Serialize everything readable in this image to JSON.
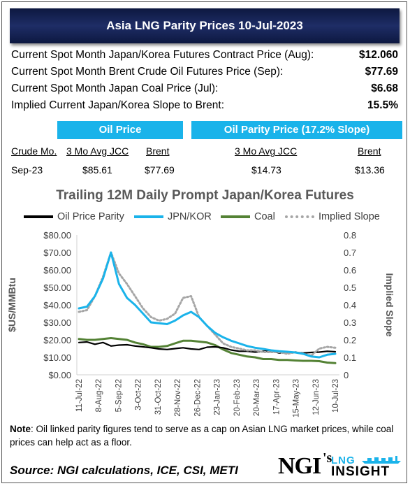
{
  "header": {
    "title": "Asia LNG Parity Prices 10-Jul-2023"
  },
  "metrics": [
    {
      "label": "Current Spot Month Japan/Korea Futures Contract Price (Aug):",
      "value": "$12.060"
    },
    {
      "label": "Current Spot Month Brent Crude Oil Futures Price (Sep):",
      "value": "$77.69"
    },
    {
      "label": "Current Spot Month Japan Coal Price (Jul):",
      "value": "$6.68"
    },
    {
      "label": "Implied Current Japan/Korea Slope to Brent:",
      "value": "15.5%"
    }
  ],
  "table": {
    "oil_price_header": "Oil Price",
    "parity_header": "Oil Parity Price (17.2% Slope)",
    "columns": [
      "Crude Mo.",
      "3 Mo Avg JCC",
      "Brent",
      "3 Mo Avg JCC",
      "Brent"
    ],
    "row": [
      "Sep-23",
      "$85.61",
      "$77.69",
      "$14.73",
      "$13.36"
    ]
  },
  "colors": {
    "parity": "#000000",
    "jpn_kor": "#1ab3ea",
    "coal": "#548235",
    "slope": "#a6a6a6",
    "header_blue": "#1ab3ea",
    "title_navy": "#16224f"
  },
  "chart_data": {
    "type": "line",
    "title": "Trailing 12M Daily Prompt Japan/Korea Futures",
    "ylabel": "$US/MMBtu",
    "y2label": "Implied Slope",
    "ylim": [
      0,
      80
    ],
    "y2lim": [
      0,
      0.8
    ],
    "y_ticks": [
      "$0.00",
      "$10.00",
      "$20.00",
      "$30.00",
      "$40.00",
      "$50.00",
      "$60.00",
      "$70.00",
      "$80.00"
    ],
    "y2_ticks": [
      "0",
      "0.1",
      "0.2",
      "0.3",
      "0.4",
      "0.5",
      "0.6",
      "0.7",
      "0.8"
    ],
    "x_ticks": [
      "11-Jul-22",
      "8-Aug-22",
      "5-Sep-22",
      "3-Oct-22",
      "31-Oct-22",
      "28-Nov-22",
      "26-Dec-22",
      "23-Jan-23",
      "20-Feb-23",
      "20-Mar-23",
      "17-Apr-23",
      "15-May-23",
      "12-Jun-23",
      "10-Jul-23"
    ],
    "legend_placement": "top",
    "grid": false,
    "series": [
      {
        "name": "Oil Price Parity",
        "axis": "left",
        "style": "solid",
        "values": [
          18.5,
          18.8,
          17.5,
          18.5,
          16.5,
          17.0,
          17.2,
          16.5,
          16.0,
          15.5,
          14.8,
          14.5,
          15.0,
          15.5,
          14.8,
          14.5,
          15.8,
          16.0,
          15.5,
          14.2,
          13.5,
          13.5,
          13.0,
          13.5,
          13.8,
          12.5,
          13.0,
          12.8,
          12.5,
          12.8,
          13.0,
          13.5,
          13.2
        ]
      },
      {
        "name": "JPN/KOR",
        "axis": "left",
        "style": "solid",
        "values": [
          38.0,
          39.0,
          45.0,
          55.0,
          70.0,
          52.0,
          44.0,
          40.0,
          35.0,
          30.0,
          29.5,
          29.0,
          31.0,
          34.0,
          36.0,
          33.0,
          28.0,
          24.0,
          21.5,
          19.5,
          18.0,
          16.5,
          15.5,
          14.8,
          14.0,
          13.5,
          13.2,
          12.8,
          12.0,
          10.5,
          10.0,
          11.5,
          12.0
        ]
      },
      {
        "name": "Coal",
        "axis": "left",
        "style": "solid",
        "values": [
          20.5,
          20.0,
          20.0,
          20.5,
          21.0,
          20.5,
          20.0,
          18.5,
          17.5,
          16.0,
          16.0,
          16.5,
          18.0,
          19.5,
          19.5,
          19.0,
          18.5,
          17.0,
          14.5,
          12.5,
          11.5,
          10.5,
          10.0,
          9.0,
          9.0,
          8.5,
          8.5,
          8.2,
          8.0,
          8.0,
          7.8,
          7.0,
          6.7
        ]
      },
      {
        "name": "Implied Slope",
        "axis": "right",
        "style": "dotted",
        "values": [
          0.36,
          0.37,
          0.45,
          0.56,
          0.7,
          0.58,
          0.52,
          0.45,
          0.38,
          0.33,
          0.31,
          0.32,
          0.35,
          0.44,
          0.45,
          0.33,
          0.28,
          0.23,
          0.18,
          0.16,
          0.15,
          0.14,
          0.14,
          0.13,
          0.13,
          0.13,
          0.12,
          0.13,
          0.12,
          0.11,
          0.15,
          0.16,
          0.155
        ]
      }
    ]
  },
  "note": {
    "bold": "Note",
    "text": ": Oil linked parity figures tend to serve as a cap on Asian LNG market prices, while coal prices can help act as a floor."
  },
  "source": "Source: NGI calculations, ICE, CSI, METI",
  "logo": {
    "brand": "NGI",
    "apostrophe": "'s",
    "line1": "LNG",
    "line2": "INSIGHT"
  }
}
